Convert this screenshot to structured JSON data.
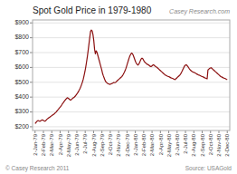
{
  "chart_data": {
    "type": "line",
    "title": "Spot Gold Price in 1979-1980",
    "annotations": [
      "Casey Research.com",
      "© Casey Research 2011",
      "Source: USAGold"
    ],
    "color": "#8B1010",
    "grid": true,
    "ylim": [
      175,
      920
    ],
    "yticks": [
      {
        "value": 200,
        "label": "$200"
      },
      {
        "value": 300,
        "label": "$300"
      },
      {
        "value": 400,
        "label": "$400"
      },
      {
        "value": 500,
        "label": "$500"
      },
      {
        "value": 600,
        "label": "$600"
      },
      {
        "value": 700,
        "label": "$700"
      },
      {
        "value": 800,
        "label": "$800"
      },
      {
        "value": 900,
        "label": "$900"
      }
    ],
    "xlim": [
      -0.3,
      23.3
    ],
    "xticks": [
      {
        "value": 0,
        "label": "2-Jan-79"
      },
      {
        "value": 1,
        "label": "2-Feb-79"
      },
      {
        "value": 2,
        "label": "2-Mar-79"
      },
      {
        "value": 3,
        "label": "2-Apr-79"
      },
      {
        "value": 4,
        "label": "2-May-79"
      },
      {
        "value": 5,
        "label": "2-Jun-79"
      },
      {
        "value": 6,
        "label": "2-Jul-79"
      },
      {
        "value": 7,
        "label": "2-Aug-79"
      },
      {
        "value": 8,
        "label": "2-Sep-79"
      },
      {
        "value": 9,
        "label": "2-Oct-79"
      },
      {
        "value": 10,
        "label": "2-Nov-79"
      },
      {
        "value": 11,
        "label": "2-Dec-79"
      },
      {
        "value": 12,
        "label": "2-Jan-80"
      },
      {
        "value": 13,
        "label": "2-Feb-80"
      },
      {
        "value": 14,
        "label": "2-Mar-80"
      },
      {
        "value": 15,
        "label": "2-Apr-80"
      },
      {
        "value": 16,
        "label": "2-May-80"
      },
      {
        "value": 17,
        "label": "2-Jun-80"
      },
      {
        "value": 18,
        "label": "2-Jul-80"
      },
      {
        "value": 19,
        "label": "2-Aug-80"
      },
      {
        "value": 20,
        "label": "2-Sep-80"
      },
      {
        "value": 21,
        "label": "2-Oct-80"
      },
      {
        "value": 22,
        "label": "2-Nov-80"
      },
      {
        "value": 23,
        "label": "2-Dec-80"
      }
    ],
    "values": [
      221,
      228,
      235,
      240,
      242,
      239,
      237,
      241,
      244,
      247,
      244,
      241,
      238,
      240,
      246,
      252,
      256,
      260,
      264,
      268,
      272,
      276,
      280,
      284,
      288,
      293,
      298,
      305,
      312,
      318,
      325,
      331,
      338,
      346,
      355,
      362,
      370,
      377,
      384,
      390,
      396,
      393,
      389,
      384,
      380,
      383,
      388,
      393,
      397,
      401,
      407,
      414,
      421,
      429,
      438,
      448,
      459,
      472,
      487,
      503,
      522,
      547,
      572,
      602,
      636,
      672,
      713,
      757,
      802,
      843,
      852,
      846,
      822,
      782,
      722,
      692,
      712,
      702,
      682,
      662,
      642,
      622,
      602,
      582,
      558,
      542,
      528,
      513,
      503,
      498,
      493,
      490,
      488,
      486,
      488,
      490,
      493,
      496,
      499,
      497,
      499,
      504,
      509,
      514,
      519,
      524,
      529,
      534,
      539,
      547,
      557,
      567,
      579,
      594,
      611,
      629,
      647,
      664,
      679,
      689,
      697,
      693,
      683,
      668,
      653,
      638,
      628,
      620,
      616,
      623,
      633,
      646,
      658,
      663,
      658,
      648,
      638,
      633,
      628,
      623,
      620,
      618,
      613,
      608,
      606,
      608,
      613,
      618,
      616,
      610,
      606,
      603,
      598,
      593,
      588,
      583,
      578,
      573,
      568,
      563,
      558,
      553,
      548,
      546,
      543,
      540,
      538,
      536,
      533,
      530,
      528,
      526,
      523,
      520,
      518,
      523,
      528,
      533,
      538,
      543,
      548,
      556,
      566,
      576,
      588,
      600,
      610,
      616,
      618,
      613,
      606,
      598,
      590,
      583,
      578,
      573,
      570,
      568,
      566,
      563,
      560,
      556,
      553,
      550,
      548,
      546,
      543,
      540,
      538,
      536,
      533,
      530,
      528,
      526,
      523,
      583,
      588,
      593,
      596,
      598,
      593,
      588,
      583,
      578,
      573,
      568,
      563,
      558,
      553,
      548,
      543,
      538,
      536,
      533,
      530,
      528,
      526,
      523,
      520,
      518
    ]
  }
}
